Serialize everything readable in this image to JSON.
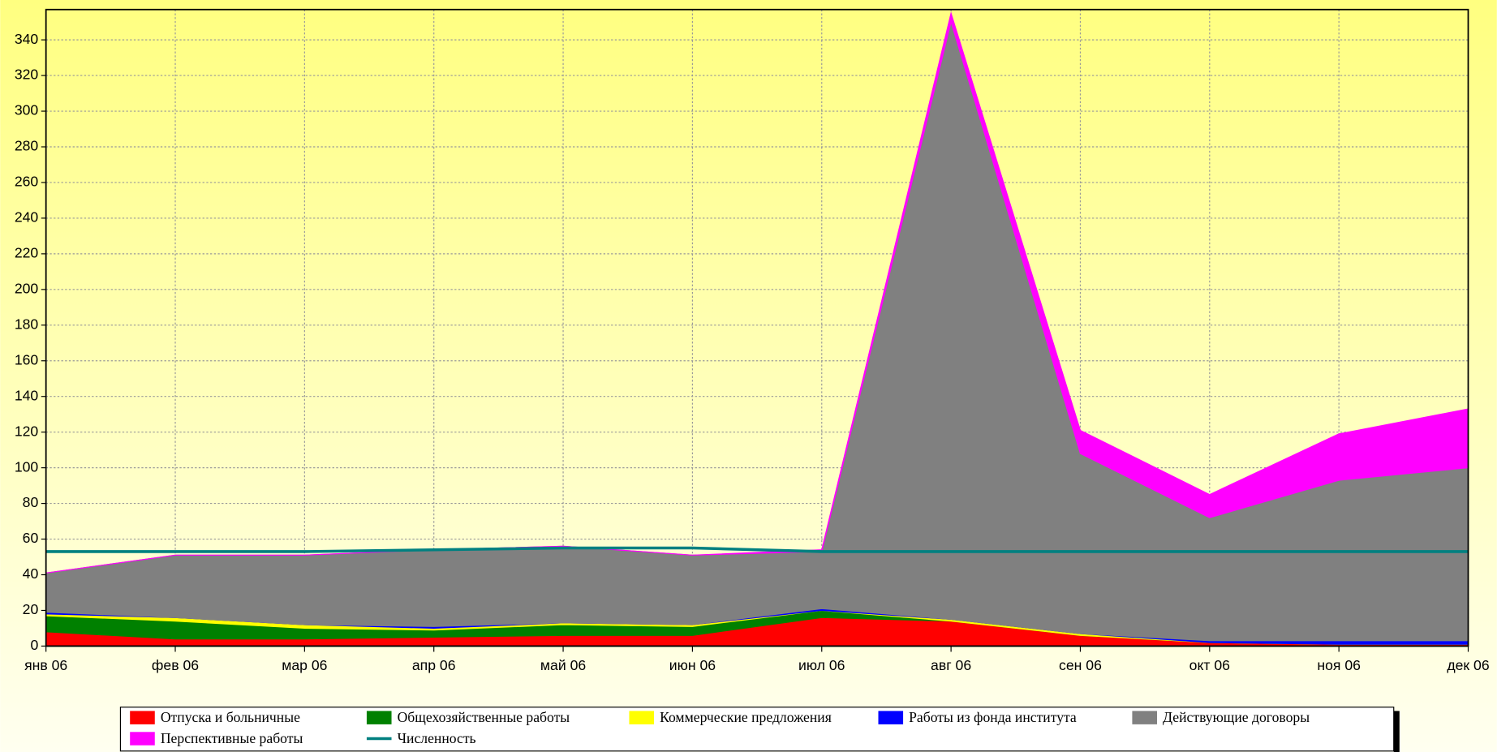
{
  "chart_data": {
    "type": "area",
    "categories": [
      "янв 06",
      "фев 06",
      "мар 06",
      "апр 06",
      "май 06",
      "июн 06",
      "июл 06",
      "авг 06",
      "сен 06",
      "окт 06",
      "ноя 06",
      "дек 06"
    ],
    "series": [
      {
        "name": "Отпуска и больничные",
        "color": "#ff0000",
        "values": [
          8,
          4,
          4,
          5,
          6,
          6,
          16,
          14,
          6,
          2,
          1,
          1
        ]
      },
      {
        "name": "Общехозяйственные работы",
        "color": "#008000",
        "values": [
          9,
          10,
          6,
          4,
          6,
          5,
          4,
          0,
          0,
          0,
          0,
          0
        ]
      },
      {
        "name": "Коммерческие предложения",
        "color": "#ffff00",
        "values": [
          1,
          2,
          2,
          1,
          1,
          1,
          0,
          1,
          1,
          0,
          0,
          0
        ]
      },
      {
        "name": "Работы из фонда института",
        "color": "#0000ff",
        "values": [
          1,
          0,
          0,
          1,
          0,
          0,
          1,
          0,
          0,
          1,
          2,
          2
        ]
      },
      {
        "name": "Действующие договоры",
        "color": "#808080",
        "values": [
          22,
          35,
          39,
          43,
          43,
          39,
          32,
          335,
          101,
          69,
          90,
          97
        ]
      },
      {
        "name": "Перспективные работы",
        "color": "#ff00ff",
        "values": [
          0,
          0,
          0,
          0,
          0,
          0,
          1,
          5,
          13,
          13,
          26,
          33
        ]
      },
      {
        "name": "Численность",
        "color": "#008080",
        "type": "line",
        "values": [
          53,
          53,
          53,
          54,
          55,
          55,
          53,
          53,
          53,
          53,
          53,
          53
        ]
      }
    ],
    "ylim": [
      0,
      357
    ],
    "yticks": [
      0,
      20,
      40,
      60,
      80,
      100,
      120,
      140,
      160,
      180,
      200,
      220,
      240,
      260,
      280,
      300,
      320,
      340
    ],
    "grid": true
  }
}
